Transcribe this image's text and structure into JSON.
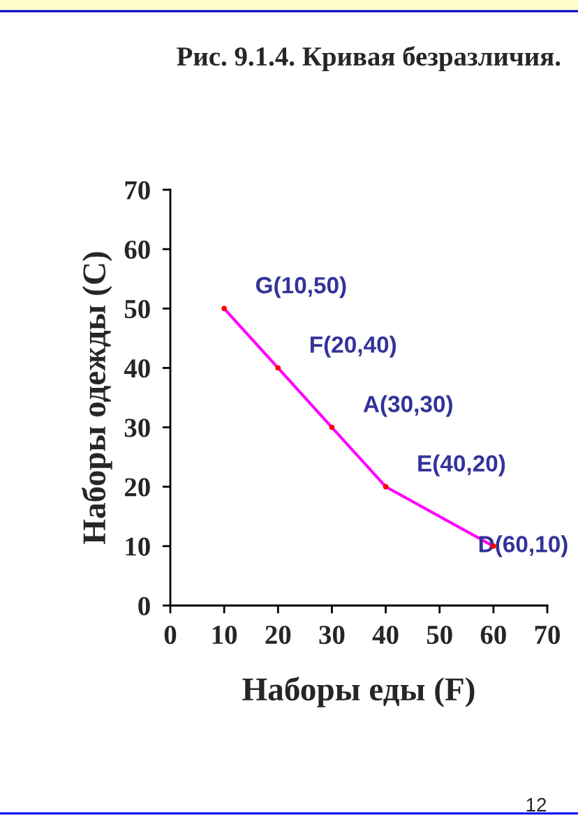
{
  "chart_data": {
    "type": "line",
    "title": "Рис. 9.1.4. Кривая безразличия.",
    "xlabel": "Наборы еды (F)",
    "ylabel": "Наборы одежды (C)",
    "x": [
      10,
      20,
      30,
      40,
      60
    ],
    "series": [
      {
        "color": "#ff00ff",
        "colors": [
          "#ff0000",
          "#ff0000",
          "#ff0000",
          "#ff0000",
          "#ff0000"
        ],
        "values": [
          50,
          40,
          30,
          20,
          10
        ]
      }
    ],
    "marker": "circle",
    "line_style": "solid",
    "grid": false,
    "legend": false,
    "xlim": [
      0,
      70
    ],
    "xticks": [
      0,
      10,
      20,
      30,
      40,
      50,
      60,
      70
    ],
    "ylim": [
      0,
      70
    ],
    "yticks": [
      0,
      10,
      20,
      30,
      40,
      50,
      60,
      70
    ],
    "annotations": [
      {
        "text": "G(10,50)",
        "x": 10,
        "y": 50
      },
      {
        "text": "F(20,40)",
        "x": 20,
        "y": 40
      },
      {
        "text": "A(30,30)",
        "x": 30,
        "y": 30
      },
      {
        "text": "E(40,20)",
        "x": 40,
        "y": 20
      },
      {
        "text": "D(60,10)",
        "x": 60,
        "y": 10
      },
      "12"
    ]
  }
}
